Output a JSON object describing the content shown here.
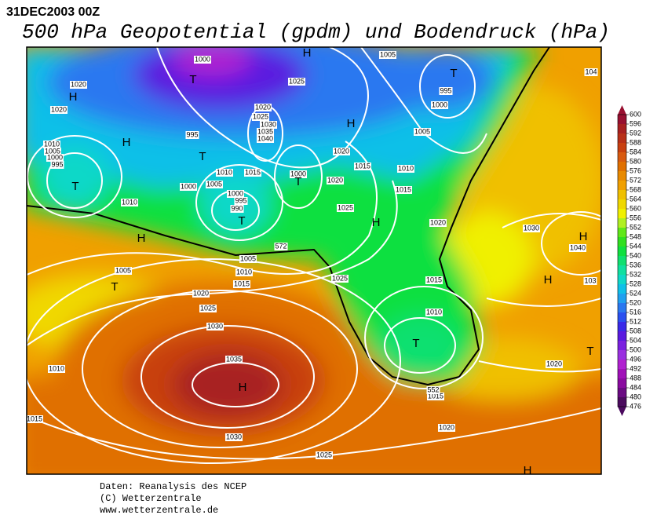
{
  "header": {
    "date": "31DEC2003 00Z",
    "title": "500 hPa Geopotential (gpdm) und Bodendruck (hPa)"
  },
  "map": {
    "pressure_labels": [
      1000,
      1020,
      1020,
      1025,
      1005,
      995,
      1000,
      1020,
      1025,
      1030,
      1035,
      1040,
      995,
      1010,
      1005,
      1000,
      995,
      1005,
      1020,
      1015,
      1010,
      1010,
      1015,
      1000,
      1020,
      1005,
      1000,
      1015,
      1000,
      995,
      990,
      1010,
      1025,
      1020,
      1030,
      1040,
      1005,
      1010,
      1015,
      1005,
      1025,
      1015,
      1010,
      1020,
      1025,
      1030,
      1035,
      1010,
      1020,
      1015,
      1015,
      1030,
      1020,
      1025,
      104,
      103,
      572,
      552
    ],
    "centers": [
      "H",
      "T",
      "H",
      "T",
      "H",
      "H",
      "T",
      "T",
      "T",
      "H",
      "T",
      "H",
      "H",
      "T",
      "H",
      "T",
      "H",
      "T",
      "H"
    ]
  },
  "colorbar": {
    "ticks": [
      476,
      480,
      484,
      488,
      492,
      496,
      500,
      504,
      508,
      512,
      516,
      520,
      524,
      528,
      532,
      536,
      540,
      544,
      548,
      552,
      556,
      560,
      564,
      568,
      572,
      576,
      580,
      584,
      588,
      592,
      596,
      600
    ],
    "colors": [
      "#4b0a5e",
      "#6a0a82",
      "#8a0aa0",
      "#a010b8",
      "#b020d0",
      "#9a30e0",
      "#7a20e0",
      "#5a1ae0",
      "#3a2ae8",
      "#2a50f0",
      "#2a78f0",
      "#20a0f0",
      "#10c0e8",
      "#10d8c8",
      "#10e0a0",
      "#10e070",
      "#10e040",
      "#30e020",
      "#60e818",
      "#b0f020",
      "#f0f000",
      "#f0d800",
      "#f0c000",
      "#f0a000",
      "#e88a00",
      "#e07000",
      "#d85a10",
      "#c84010",
      "#b83018",
      "#a82020",
      "#981030"
    ]
  },
  "footer": {
    "lines": [
      "Daten: Reanalysis des NCEP",
      "(C) Wetterzentrale",
      "www.wetterzentrale.de"
    ]
  }
}
